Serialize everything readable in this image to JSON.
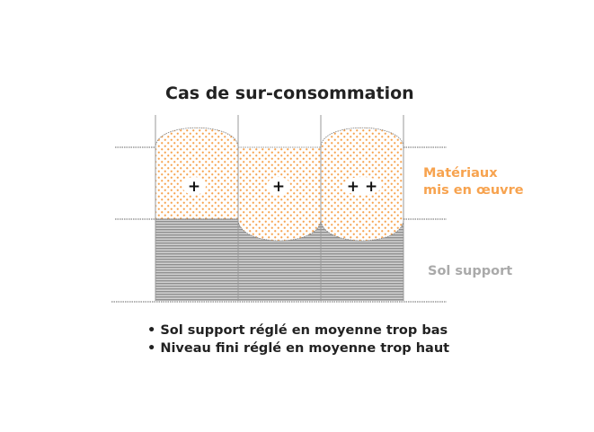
{
  "title": "Cas de sur-consommation",
  "labels": {
    "materials_line1": "Matériaux",
    "materials_line2": "mis en œuvre",
    "ground": "Sol support"
  },
  "cells": [
    {
      "marker": "+"
    },
    {
      "marker": "+"
    },
    {
      "marker": "+ +"
    }
  ],
  "bullets": [
    "• Sol support réglé en moyenne trop bas",
    "• Niveau fini réglé en moyenne trop haut"
  ],
  "colors": {
    "materials": "#f7a34f",
    "ground": "#9a9a9a",
    "text": "#222222"
  }
}
